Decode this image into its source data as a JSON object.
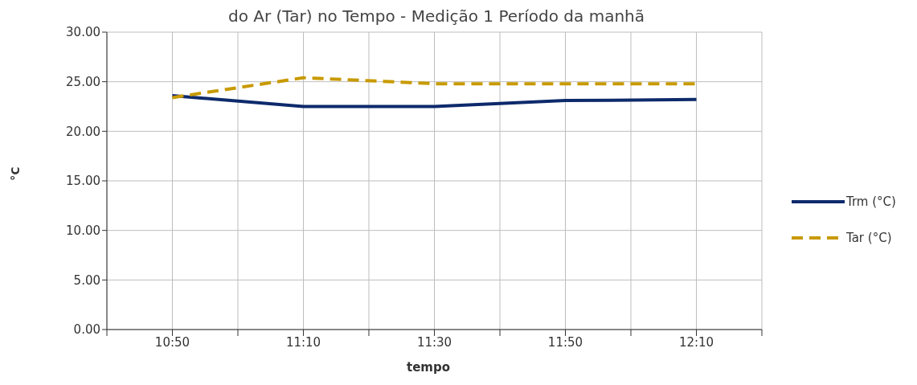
{
  "chart_data": {
    "type": "line",
    "title": "do Ar (Tar) no Tempo - Medição 1 Período da manhã",
    "xlabel": "tempo",
    "ylabel": "°C",
    "x": [
      10.8333,
      11.1667,
      11.5,
      11.8333,
      12.1667
    ],
    "series": [
      {
        "name": "Trm (°C)",
        "color": "#0d2a6b",
        "values": [
          23.6,
          22.5,
          22.5,
          23.1,
          23.2
        ],
        "line_style": "solid"
      },
      {
        "name": "Tar (°C)",
        "color": "#c89a00",
        "values": [
          23.4,
          25.4,
          24.8,
          24.8,
          24.8
        ],
        "line_style": "dashed"
      }
    ],
    "xlim": [
      10.6667,
      12.3333
    ],
    "xticks": [
      {
        "value": 10.6667,
        "label": null
      },
      {
        "value": 10.8333,
        "label": "10:50"
      },
      {
        "value": 11,
        "label": null
      },
      {
        "value": 11.1667,
        "label": "11:10"
      },
      {
        "value": 11.3333,
        "label": null
      },
      {
        "value": 11.5,
        "label": "11:30"
      },
      {
        "value": 11.6667,
        "label": null
      },
      {
        "value": 11.8333,
        "label": "11:50"
      },
      {
        "value": 12,
        "label": null
      },
      {
        "value": 12.1667,
        "label": "12:10"
      },
      {
        "value": 12.3333,
        "label": null
      }
    ],
    "ylim": [
      0,
      30
    ],
    "yticks": [
      {
        "value": 0,
        "label": "0.00"
      },
      {
        "value": 5,
        "label": "5.00"
      },
      {
        "value": 10,
        "label": "10.00"
      },
      {
        "value": 15,
        "label": "15.00"
      },
      {
        "value": 20,
        "label": "20.00"
      },
      {
        "value": 25,
        "label": "25.00"
      },
      {
        "value": 30,
        "label": "30.00"
      }
    ],
    "grid": true,
    "legend": "right",
    "marker": "none"
  }
}
